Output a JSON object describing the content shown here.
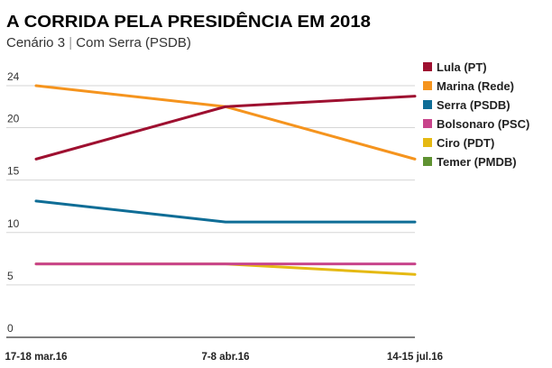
{
  "header": {
    "title": "A CORRIDA PELA PRESIDÊNCIA EM 2018",
    "subtitle_main": "Cenário 3",
    "subtitle_sep": "|",
    "subtitle_rest": "Com Serra (PSDB)"
  },
  "chart_data": {
    "type": "line",
    "title": "A CORRIDA PELA PRESIDÊNCIA EM 2018",
    "subtitle": "Cenário 3 | Com Serra (PSDB)",
    "xlabel": "",
    "ylabel": "",
    "categories": [
      "17-18 mar.16",
      "7-8 abr.16",
      "14-15 jul.16"
    ],
    "ylim": [
      0,
      24
    ],
    "yticks": [
      0,
      5,
      10,
      15,
      20,
      24
    ],
    "grid": true,
    "legend_position": "right",
    "series": [
      {
        "name": "Lula (PT)",
        "color": "#9e1030",
        "values": [
          17,
          22,
          23
        ]
      },
      {
        "name": "Marina (Rede)",
        "color": "#f5941e",
        "values": [
          24,
          22,
          17
        ]
      },
      {
        "name": "Serra (PSDB)",
        "color": "#0f6d96",
        "values": [
          13,
          11,
          11
        ]
      },
      {
        "name": "Bolsonaro (PSC)",
        "color": "#c8448b",
        "values": [
          7,
          7,
          7
        ]
      },
      {
        "name": "Ciro (PDT)",
        "color": "#e5b913",
        "values": [
          7,
          7,
          6
        ]
      },
      {
        "name": "Temer (PMDB)",
        "color": "#5f9232",
        "values": [
          null,
          null,
          null
        ]
      }
    ]
  }
}
